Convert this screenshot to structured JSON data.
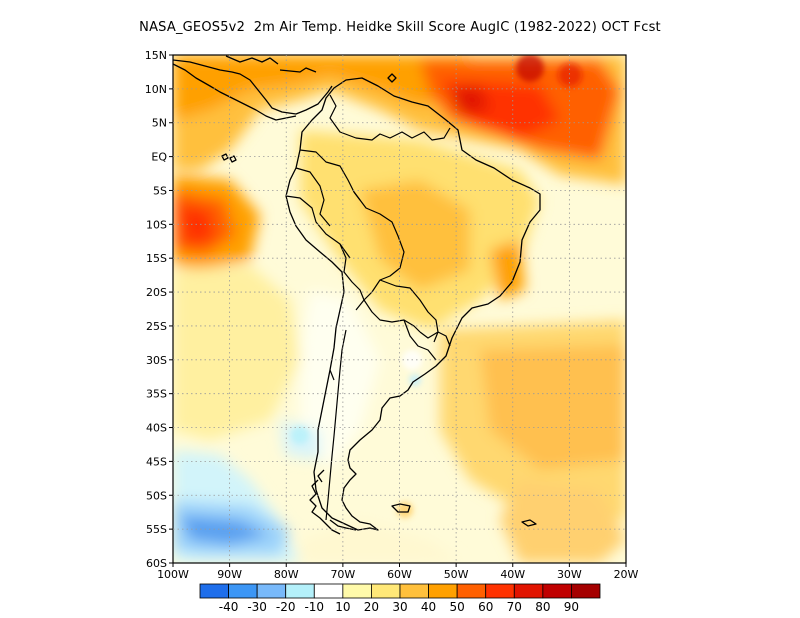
{
  "title": "NASA_GEOS5v2  2m Air Temp. Heidke Skill Score AugIC (1982-2022) OCT Fcst",
  "map": {
    "lon_range": [
      -100,
      -20
    ],
    "lat_range": [
      -60,
      15
    ],
    "lon_ticks": [
      {
        "value": -100,
        "label": "100W"
      },
      {
        "value": -90,
        "label": "90W"
      },
      {
        "value": -80,
        "label": "80W"
      },
      {
        "value": -70,
        "label": "70W"
      },
      {
        "value": -60,
        "label": "60W"
      },
      {
        "value": -50,
        "label": "50W"
      },
      {
        "value": -40,
        "label": "40W"
      },
      {
        "value": -30,
        "label": "30W"
      },
      {
        "value": -20,
        "label": "20W"
      }
    ],
    "lat_ticks": [
      {
        "value": 15,
        "label": "15N"
      },
      {
        "value": 10,
        "label": "10N"
      },
      {
        "value": 5,
        "label": "5N"
      },
      {
        "value": 0,
        "label": "EQ"
      },
      {
        "value": -5,
        "label": "5S"
      },
      {
        "value": -10,
        "label": "10S"
      },
      {
        "value": -15,
        "label": "15S"
      },
      {
        "value": -20,
        "label": "20S"
      },
      {
        "value": -25,
        "label": "25S"
      },
      {
        "value": -30,
        "label": "30S"
      },
      {
        "value": -35,
        "label": "35S"
      },
      {
        "value": -40,
        "label": "40S"
      },
      {
        "value": -45,
        "label": "45S"
      },
      {
        "value": -50,
        "label": "50S"
      },
      {
        "value": -55,
        "label": "55S"
      },
      {
        "value": -60,
        "label": "60S"
      }
    ],
    "grid": "dotted"
  },
  "colorbar": {
    "colors": [
      "#1e6eeb",
      "#3c96f5",
      "#78b9fa",
      "#b4f0fa",
      "#ffffff",
      "#fffaaa",
      "#ffe878",
      "#ffc03c",
      "#ffa000",
      "#ff6000",
      "#ff3200",
      "#e11400",
      "#c00000",
      "#a50000"
    ],
    "labels": [
      "-40",
      "-30",
      "-20",
      "-10",
      "10",
      "20",
      "30",
      "40",
      "50",
      "60",
      "70",
      "80",
      "90"
    ]
  },
  "colors": {
    "coastline": "#000000",
    "grid": "#9a9a9a"
  }
}
